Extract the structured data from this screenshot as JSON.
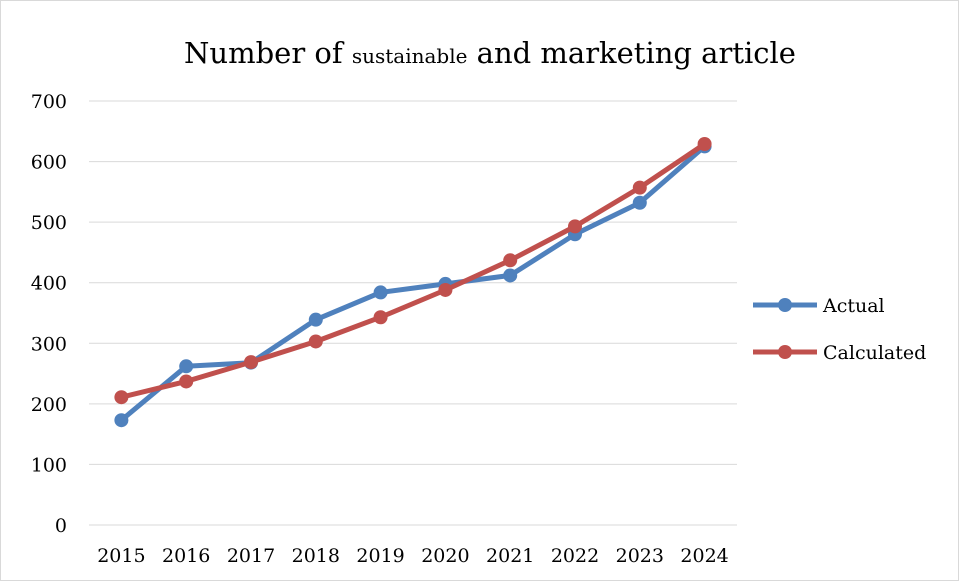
{
  "chart_data": {
    "type": "line",
    "title": {
      "part1": "Number of ",
      "part2": "sustainable",
      "part3": " and marketing article"
    },
    "xlabel": "",
    "ylabel": "",
    "categories": [
      "2015",
      "2016",
      "2017",
      "2018",
      "2019",
      "2020",
      "2021",
      "2022",
      "2023",
      "2024"
    ],
    "ylim": [
      0,
      700
    ],
    "yticks": [
      0,
      100,
      200,
      300,
      400,
      500,
      600,
      700
    ],
    "grid": true,
    "legend_position": "right",
    "series": [
      {
        "name": "Actual",
        "color": "#4f81bd",
        "values": [
          173,
          262,
          268,
          339,
          384,
          398,
          412,
          480,
          532,
          625
        ]
      },
      {
        "name": "Calculated",
        "color": "#c0504d",
        "values": [
          211,
          237,
          269,
          303,
          343,
          388,
          437,
          493,
          557,
          629
        ]
      }
    ]
  }
}
